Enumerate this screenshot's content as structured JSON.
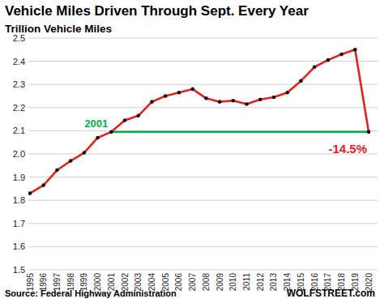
{
  "chart_data": {
    "type": "line",
    "title": "Vehicle Miles Driven Through Sept. Every Year",
    "subtitle": "Trillion Vehicle Miles",
    "source": "Source: Federal Highway Administration",
    "credit": "WOLFSTREET.com",
    "categories": [
      "1995",
      "1996",
      "1997",
      "1998",
      "1999",
      "2000",
      "2001",
      "2002",
      "2003",
      "2004",
      "2005",
      "2006",
      "2007",
      "2008",
      "2009",
      "2010",
      "2011",
      "2012",
      "2013",
      "2014",
      "2015",
      "2016",
      "2017",
      "2018",
      "2019",
      "2020"
    ],
    "values": [
      1.83,
      1.865,
      1.93,
      1.97,
      2.005,
      2.07,
      2.095,
      2.145,
      2.165,
      2.225,
      2.25,
      2.265,
      2.28,
      2.24,
      2.225,
      2.23,
      2.215,
      2.235,
      2.245,
      2.265,
      2.315,
      2.375,
      2.405,
      2.43,
      2.45,
      2.095
    ],
    "color": "#e8201e",
    "marker": "circle",
    "ylim": [
      1.5,
      2.5
    ],
    "yticks": [
      1.5,
      1.6,
      1.7,
      1.8,
      1.9,
      {
        "value": 2,
        "label": "2.0"
      },
      2.1,
      2.2,
      2.3,
      2.4,
      2.5
    ],
    "grid": true,
    "reference_line": {
      "label": "2001",
      "value": 2.095,
      "from": "2001",
      "to": "2020",
      "color": "#00b050"
    },
    "annotations": [
      {
        "text": "-14.5%",
        "category": "2020",
        "color": "#e8201e"
      }
    ]
  }
}
